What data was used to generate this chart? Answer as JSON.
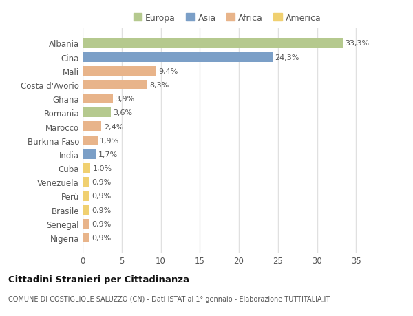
{
  "countries": [
    "Albania",
    "Cina",
    "Mali",
    "Costa d'Avorio",
    "Ghana",
    "Romania",
    "Marocco",
    "Burkina Faso",
    "India",
    "Cuba",
    "Venezuela",
    "Perù",
    "Brasile",
    "Senegal",
    "Nigeria"
  ],
  "values": [
    33.3,
    24.3,
    9.4,
    8.3,
    3.9,
    3.6,
    2.4,
    1.9,
    1.7,
    1.0,
    0.9,
    0.9,
    0.9,
    0.9,
    0.9
  ],
  "labels": [
    "33,3%",
    "24,3%",
    "9,4%",
    "8,3%",
    "3,9%",
    "3,6%",
    "2,4%",
    "1,9%",
    "1,7%",
    "1,0%",
    "0,9%",
    "0,9%",
    "0,9%",
    "0,9%",
    "0,9%"
  ],
  "continents": [
    "Europa",
    "Asia",
    "Africa",
    "Africa",
    "Africa",
    "Europa",
    "Africa",
    "Africa",
    "Asia",
    "America",
    "America",
    "America",
    "America",
    "Africa",
    "Africa"
  ],
  "colors": {
    "Europa": "#b5c98e",
    "Asia": "#7b9fc7",
    "Africa": "#e8b48a",
    "America": "#f0d070"
  },
  "legend_order": [
    "Europa",
    "Asia",
    "Africa",
    "America"
  ],
  "bg_color": "#ffffff",
  "plot_bg_color": "#ffffff",
  "grid_color": "#e0e0e0",
  "title": "Cittadini Stranieri per Cittadinanza",
  "subtitle": "COMUNE DI COSTIGLIOLE SALUZZO (CN) - Dati ISTAT al 1° gennaio - Elaborazione TUTTITALIA.IT",
  "xlim": [
    0,
    37
  ],
  "xticks": [
    0,
    5,
    10,
    15,
    20,
    25,
    30,
    35
  ]
}
